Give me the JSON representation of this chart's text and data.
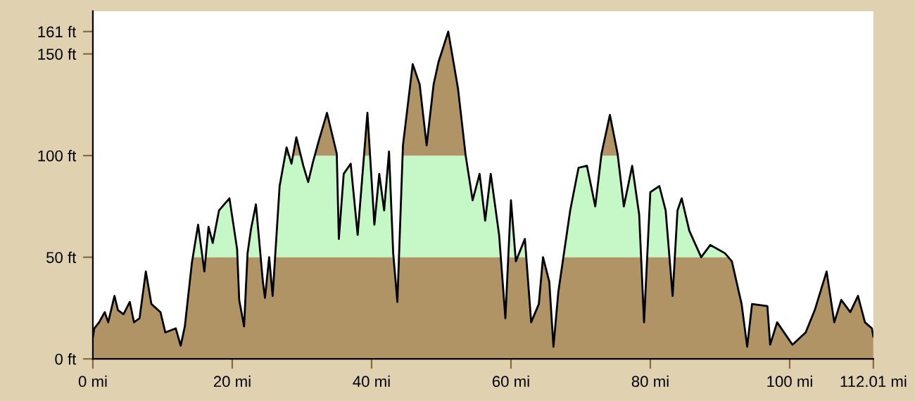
{
  "chart_data": {
    "type": "area",
    "xlim": [
      0,
      112.01
    ],
    "ylim": [
      0,
      171
    ],
    "xticks": [
      {
        "value": 0,
        "label": "0 mi"
      },
      {
        "value": 20,
        "label": "20 mi"
      },
      {
        "value": 40,
        "label": "40 mi"
      },
      {
        "value": 60,
        "label": "60 mi"
      },
      {
        "value": 80,
        "label": "80 mi"
      },
      {
        "value": 100,
        "label": "100 mi"
      },
      {
        "value": 112.01,
        "label": "112.01 mi"
      }
    ],
    "yticks": [
      {
        "value": 0,
        "label": "0 ft"
      },
      {
        "value": 50,
        "label": "50 ft"
      },
      {
        "value": 100,
        "label": "100 ft"
      },
      {
        "value": 150,
        "label": "150 ft"
      },
      {
        "value": 161,
        "label": "161 ft"
      }
    ],
    "grid": false,
    "legend": false,
    "bands": [
      {
        "axis": "y",
        "from": 50,
        "to": 100,
        "color": "#c6f7c6"
      }
    ],
    "x": [
      0,
      0.2,
      0.9,
      1.7,
      2.2,
      3.1,
      3.6,
      4.4,
      5.3,
      5.9,
      6.7,
      7.6,
      8.4,
      9.7,
      10.4,
      11.9,
      12.6,
      13.2,
      14.2,
      15.1,
      16,
      16.6,
      17.2,
      18.1,
      19.6,
      20.7,
      21,
      21.7,
      22.2,
      22.7,
      23.4,
      24.4,
      24.7,
      25.3,
      25.8,
      26.8,
      27.8,
      28.5,
      29.2,
      30.2,
      30.9,
      31.6,
      32.4,
      33.6,
      35,
      35.3,
      36,
      37,
      38,
      39.4,
      40.4,
      41.1,
      41.8,
      42.5,
      43.1,
      43.7,
      44.5,
      45.9,
      46.9,
      47.9,
      48.9,
      49.6,
      51,
      52.4,
      53.5,
      54.5,
      55.5,
      56.3,
      57.1,
      58.3,
      59.2,
      60,
      60.7,
      62,
      62.9,
      64,
      64.6,
      65.5,
      66.1,
      66.8,
      68.5,
      69.7,
      70.9,
      72.1,
      73,
      74.2,
      75.3,
      76.2,
      77.4,
      78.4,
      79.1,
      80,
      81.3,
      82.2,
      83.2,
      83.9,
      84.5,
      85.6,
      87.3,
      88.6,
      90.7,
      91.7,
      93.1,
      93.9,
      94.6,
      96.8,
      97.2,
      98.2,
      100.4,
      102.3,
      103.6,
      105.3,
      106.4,
      107.4,
      108.7,
      109.8,
      110.8,
      111.8,
      112.01
    ],
    "series": [
      {
        "color": "#b09466",
        "values": [
          10.6,
          15,
          18,
          23,
          18,
          31,
          24,
          22,
          28,
          18,
          20,
          43,
          27,
          23,
          13,
          15,
          6.5,
          16,
          47,
          66,
          43,
          65,
          57,
          73,
          79,
          54,
          29,
          16,
          52,
          64,
          76,
          38,
          30,
          50,
          31,
          85,
          104,
          96,
          109,
          95,
          87,
          97,
          107,
          121,
          101,
          59,
          91,
          96,
          61,
          121,
          66,
          91,
          73,
          102,
          52,
          28,
          105,
          145,
          135,
          105,
          135,
          146,
          161,
          133,
          100,
          78,
          91,
          68,
          91,
          61,
          20,
          78,
          48,
          59,
          18,
          27,
          50,
          38,
          6,
          33,
          73,
          94,
          95,
          75,
          101,
          120,
          101,
          75,
          95,
          71,
          18,
          82,
          85,
          73,
          31,
          73,
          79,
          63,
          50,
          56,
          52,
          48,
          27,
          6,
          27,
          26,
          7,
          18,
          7,
          13,
          24,
          43,
          18,
          29,
          23,
          31,
          18,
          15,
          11
        ]
      }
    ]
  }
}
